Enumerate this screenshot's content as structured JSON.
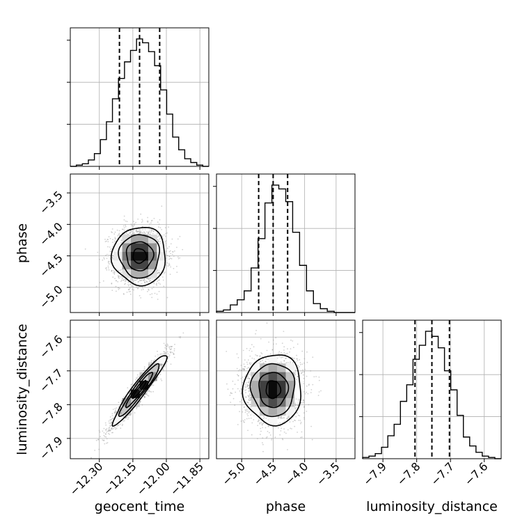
{
  "chart_data": {
    "type": "corner",
    "parameters": [
      "geocent_time",
      "phase",
      "luminosity_distance"
    ],
    "ranges": {
      "geocent_time": [
        -12.43,
        -11.81
      ],
      "phase": [
        -5.4,
        -3.2
      ],
      "luminosity_distance": [
        -7.96,
        -7.55
      ]
    },
    "ticks": {
      "geocent_time": [
        "−12.30",
        "−12.15",
        "−12.00",
        "−11.85"
      ],
      "phase": [
        "−5.0",
        "−4.5",
        "−4.0",
        "−3.5"
      ],
      "luminosity_distance": [
        "−7.9",
        "−7.8",
        "−7.7",
        "−7.6"
      ]
    },
    "tick_values": {
      "geocent_time": [
        -12.3,
        -12.15,
        -12.0,
        -11.85
      ],
      "phase": [
        -5.0,
        -4.5,
        -4.0,
        -3.5
      ],
      "luminosity_distance": [
        -7.9,
        -7.8,
        -7.7,
        -7.6
      ]
    },
    "quantiles": {
      "geocent_time": [
        -12.21,
        -12.12,
        -12.03
      ],
      "phase": [
        -4.73,
        -4.5,
        -4.27
      ],
      "luminosity_distance": [
        -7.805,
        -7.755,
        -7.703
      ]
    },
    "histograms": {
      "geocent_time": {
        "range": [
          -12.43,
          -11.81
        ],
        "counts": [
          0,
          1,
          2,
          5,
          10,
          21,
          35,
          53,
          69,
          82,
          91,
          100,
          97,
          90,
          79,
          60,
          41,
          23,
          13,
          6,
          3,
          1,
          0
        ]
      },
      "phase": {
        "range": [
          -5.4,
          -3.2
        ],
        "counts": [
          1,
          2,
          6,
          10,
          17,
          35,
          58,
          86,
          100,
          97,
          87,
          63,
          37,
          17,
          7,
          3,
          1,
          0,
          0,
          0
        ]
      },
      "luminosity_distance": {
        "range": [
          -7.96,
          -7.55
        ],
        "counts": [
          1,
          2,
          4,
          9,
          18,
          27,
          45,
          58,
          78,
          89,
          100,
          96,
          87,
          69,
          54,
          34,
          17,
          10,
          5,
          2,
          1,
          0
        ]
      }
    },
    "joint": {
      "phase_vs_geocent_time": {
        "mean": [
          -12.12,
          -4.5
        ],
        "sigma": [
          0.06,
          0.23
        ],
        "rho": 0.0
      },
      "luminosity_distance_vs_geocent_time": {
        "mean": [
          -12.12,
          -7.755
        ],
        "sigma": [
          0.06,
          0.052
        ],
        "rho": 0.95
      },
      "luminosity_distance_vs_phase": {
        "mean": [
          -4.5,
          -7.755
        ],
        "sigma": [
          0.23,
          0.052
        ],
        "rho": 0.0
      }
    },
    "grid": true,
    "colors": {
      "line": "#000000",
      "grid": "#b0b0b0",
      "scatter": "#9a9a9a"
    }
  }
}
